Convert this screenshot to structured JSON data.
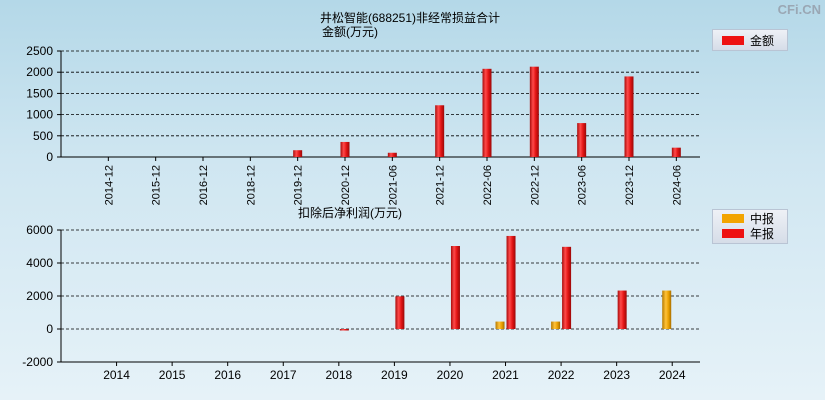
{
  "watermark": "CFi.CN",
  "chart_data": [
    {
      "type": "bar",
      "title": "井松智能(688251)非经常损益合计",
      "ylabel": "金额(万元)",
      "categories": [
        "2014-12",
        "2015-12",
        "2016-12",
        "2018-12",
        "2019-12",
        "2020-12",
        "2021-06",
        "2021-12",
        "2022-06",
        "2022-12",
        "2023-06",
        "2023-12",
        "2024-06"
      ],
      "series": [
        {
          "name": "金额",
          "color": "#ee1111",
          "values": [
            0,
            0,
            0,
            0,
            160,
            355,
            100,
            1220,
            2080,
            2130,
            800,
            1900,
            220
          ]
        }
      ],
      "ylim": [
        0,
        2500
      ],
      "yticks": [
        0,
        500,
        1000,
        1500,
        2000,
        2500
      ],
      "grid": true,
      "legend": "right"
    },
    {
      "type": "bar",
      "title": "扣除后净利润(万元)",
      "categories": [
        "2014",
        "2015",
        "2016",
        "2017",
        "2018",
        "2019",
        "2020",
        "2021",
        "2022",
        "2023",
        "2024"
      ],
      "series": [
        {
          "name": "中报",
          "color": "#f2a400",
          "values": [
            0,
            0,
            0,
            0,
            0,
            0,
            0,
            450,
            450,
            0,
            2330
          ]
        },
        {
          "name": "年报",
          "color": "#ee1111",
          "values": [
            0,
            0,
            0,
            0,
            -60,
            1980,
            5030,
            5640,
            4980,
            2330,
            null
          ]
        }
      ],
      "ylim": [
        -2000,
        6000
      ],
      "yticks": [
        -2000,
        0,
        2000,
        4000,
        6000
      ],
      "grid": true,
      "legend": "right"
    }
  ]
}
